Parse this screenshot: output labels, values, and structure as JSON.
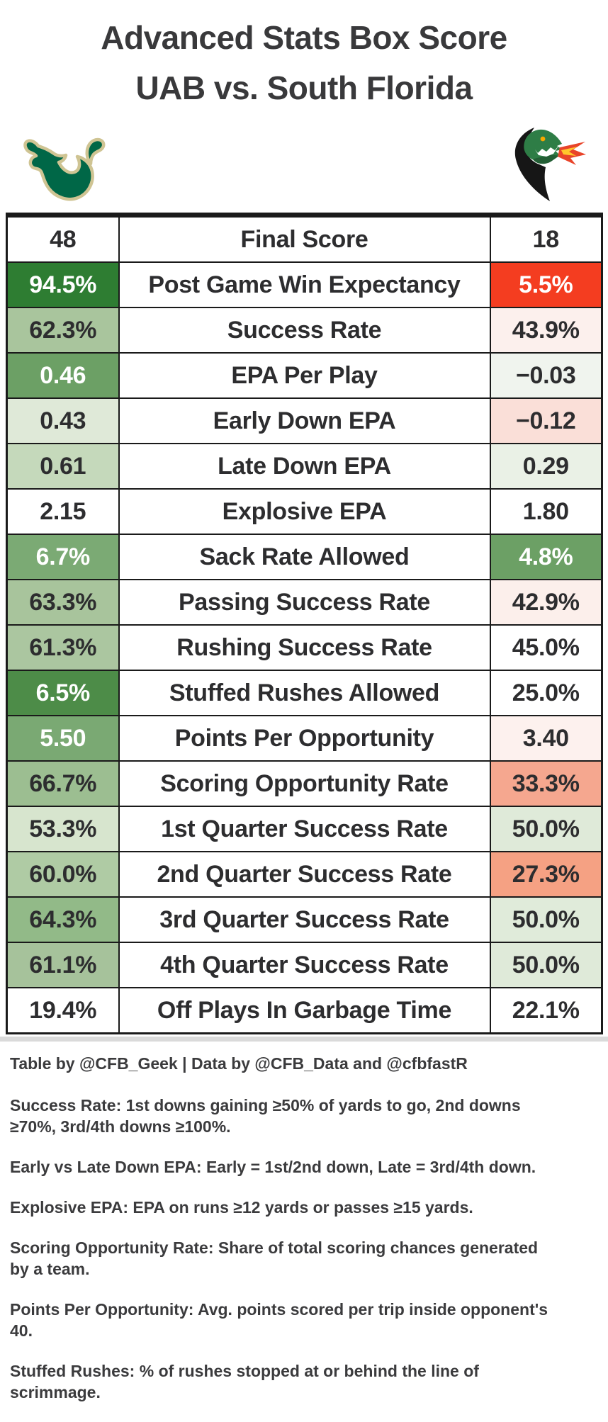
{
  "title": {
    "line1": "Advanced Stats Box Score",
    "line2": "UAB vs. South Florida"
  },
  "logos": {
    "left_icon": "south-florida-bulls-logo",
    "right_icon": "uab-dragon-logo"
  },
  "colors": {
    "title_text": "#39393B",
    "table_border": "#1A1A1A",
    "win_dark_green": "#2E7D32",
    "loss_red": "#F43D20",
    "salmon": "#F5A78F",
    "usf_green": "#006747",
    "usf_cream": "#CFC493",
    "uab_green": "#2E7D46",
    "flame_red": "#E8442A",
    "flame_yellow": "#FFC72C",
    "shadow_gray": "#DADADA"
  },
  "chart_data": {
    "type": "table",
    "title": "Advanced Stats Box Score UAB vs. South Florida",
    "metrics": [
      "Final Score",
      "Post Game Win Expectancy",
      "Success Rate",
      "EPA Per Play",
      "Early Down EPA",
      "Late Down EPA",
      "Explosive EPA",
      "Sack Rate Allowed",
      "Passing Success Rate",
      "Rushing Success Rate",
      "Stuffed Rushes Allowed",
      "Points Per Opportunity",
      "Scoring Opportunity Rate",
      "1st Quarter Success Rate",
      "2nd Quarter Success Rate",
      "3rd Quarter Success Rate",
      "4th Quarter Success Rate",
      "Off Plays In Garbage Time"
    ],
    "series": [
      {
        "name": "South Florida",
        "values": [
          "48",
          "94.5%",
          "62.3%",
          "0.46",
          "0.43",
          "0.61",
          "2.15",
          "6.7%",
          "63.3%",
          "61.3%",
          "6.5%",
          "5.50",
          "66.7%",
          "53.3%",
          "60.0%",
          "64.3%",
          "61.1%",
          "19.4%"
        ]
      },
      {
        "name": "UAB",
        "values": [
          "18",
          "5.5%",
          "43.9%",
          "−0.03",
          "−0.12",
          "0.29",
          "1.80",
          "4.8%",
          "42.9%",
          "45.0%",
          "25.0%",
          "3.40",
          "33.3%",
          "50.0%",
          "27.3%",
          "50.0%",
          "50.0%",
          "22.1%"
        ]
      }
    ]
  },
  "table": {
    "cell_styles": [
      {
        "l": [
          "#FFFFFF",
          "#2D2D2F"
        ],
        "r": [
          "#FFFFFF",
          "#2D2D2F"
        ]
      },
      {
        "l": [
          "#2E7D32",
          "#FFFFFF"
        ],
        "r": [
          "#F43D20",
          "#FFFFFF"
        ]
      },
      {
        "l": [
          "#A9C59D",
          "#2D2D2F"
        ],
        "r": [
          "#FCF0ED",
          "#2D2D2F"
        ]
      },
      {
        "l": [
          "#6CA065",
          "#FFFFFF"
        ],
        "r": [
          "#F0F4EE",
          "#2D2D2F"
        ]
      },
      {
        "l": [
          "#DFE9D8",
          "#2D2D2F"
        ],
        "r": [
          "#FADFD8",
          "#2D2D2F"
        ]
      },
      {
        "l": [
          "#C5D9BB",
          "#2D2D2F"
        ],
        "r": [
          "#EAF1E6",
          "#2D2D2F"
        ]
      },
      {
        "l": [
          "#FFFFFF",
          "#2D2D2F"
        ],
        "r": [
          "#FFFFFF",
          "#2D2D2F"
        ]
      },
      {
        "l": [
          "#7BAA74",
          "#FFFFFF"
        ],
        "r": [
          "#6CA065",
          "#FFFFFF"
        ]
      },
      {
        "l": [
          "#A8C49C",
          "#2D2D2F"
        ],
        "r": [
          "#FCEFEB",
          "#2D2D2F"
        ]
      },
      {
        "l": [
          "#ABC6A0",
          "#2D2D2F"
        ],
        "r": [
          "#FFFFFF",
          "#2D2D2F"
        ]
      },
      {
        "l": [
          "#4D8C48",
          "#FFFFFF"
        ],
        "r": [
          "#FFFFFF",
          "#2D2D2F"
        ]
      },
      {
        "l": [
          "#7AA973",
          "#FFFFFF"
        ],
        "r": [
          "#FDF1EE",
          "#2D2D2F"
        ]
      },
      {
        "l": [
          "#9CBE91",
          "#2D2D2F"
        ],
        "r": [
          "#F5A78F",
          "#2D2D2F"
        ]
      },
      {
        "l": [
          "#D7E5CE",
          "#2D2D2F"
        ],
        "r": [
          "#DFEAD9",
          "#2D2D2F"
        ]
      },
      {
        "l": [
          "#AFCBA4",
          "#2D2D2F"
        ],
        "r": [
          "#F5A183",
          "#2D2D2F"
        ]
      },
      {
        "l": [
          "#92BA88",
          "#2D2D2F"
        ],
        "r": [
          "#E0EBDA",
          "#2D2D2F"
        ]
      },
      {
        "l": [
          "#A6C29B",
          "#2D2D2F"
        ],
        "r": [
          "#DFEAD9",
          "#2D2D2F"
        ]
      },
      {
        "l": [
          "#FFFFFF",
          "#2D2D2F"
        ],
        "r": [
          "#FFFFFF",
          "#2D2D2F"
        ]
      }
    ]
  },
  "attribution": "Table by @CFB_Geek | Data by @CFB_Data and @cfbfastR",
  "footnotes": [
    {
      "term": "Success Rate:",
      "lines": [
        "1st downs gaining ≥50% of yards to go, 2nd downs",
        "≥70%, 3rd/4th downs ≥100%."
      ]
    },
    {
      "term": "Early vs Late Down EPA:",
      "lines": [
        "Early = 1st/2nd down, Late = 3rd/4th down."
      ]
    },
    {
      "term": "Explosive EPA:",
      "lines": [
        "EPA on runs ≥12 yards or passes ≥15 yards."
      ]
    },
    {
      "term": "Scoring Opportunity Rate:",
      "lines": [
        "Share of total scoring chances generated",
        "by a team."
      ]
    },
    {
      "term": "Points Per Opportunity:",
      "lines": [
        "Avg. points scored per trip inside opponent's",
        "40."
      ]
    },
    {
      "term": "Stuffed Rushes:",
      "lines": [
        "% of rushes stopped at or behind the line of",
        "scrimmage."
      ]
    }
  ]
}
